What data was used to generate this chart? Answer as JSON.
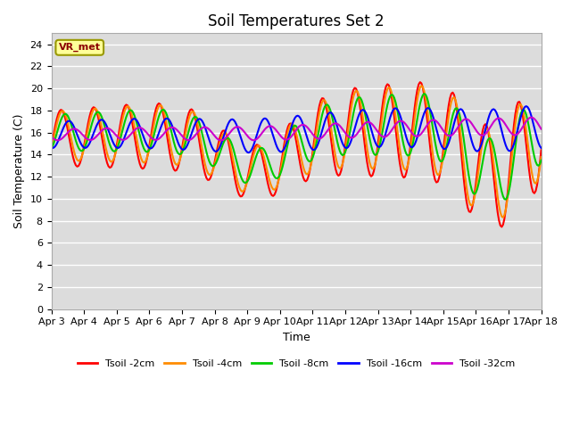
{
  "title": "Soil Temperatures Set 2",
  "xlabel": "Time",
  "ylabel": "Soil Temperature (C)",
  "xlim": [
    0,
    360
  ],
  "ylim": [
    0,
    25
  ],
  "yticks": [
    0,
    2,
    4,
    6,
    8,
    10,
    12,
    14,
    16,
    18,
    20,
    22,
    24
  ],
  "xtick_labels": [
    "Apr 3",
    "Apr 4",
    "Apr 5",
    "Apr 6",
    "Apr 7",
    "Apr 8",
    "Apr 9",
    "Apr 10",
    "Apr 11",
    "Apr 12",
    "Apr 13",
    "Apr 14",
    "Apr 15",
    "Apr 16",
    "Apr 17",
    "Apr 18"
  ],
  "xtick_positions": [
    0,
    24,
    48,
    72,
    96,
    120,
    144,
    168,
    192,
    216,
    240,
    264,
    288,
    312,
    336,
    360
  ],
  "annotation_text": "VR_met",
  "annotation_color": "#8B0000",
  "annotation_bg": "#FFFF99",
  "line_colors": [
    "#FF0000",
    "#FF8C00",
    "#00CC00",
    "#0000FF",
    "#CC00CC"
  ],
  "line_labels": [
    "Tsoil -2cm",
    "Tsoil -4cm",
    "Tsoil -8cm",
    "Tsoil -16cm",
    "Tsoil -32cm"
  ],
  "line_widths": [
    1.5,
    1.5,
    1.5,
    1.5,
    1.5
  ],
  "plot_bg": "#DCDCDC",
  "grid_color": "#FFFFFF",
  "title_fontsize": 12,
  "axis_fontsize": 9,
  "tick_fontsize": 8
}
